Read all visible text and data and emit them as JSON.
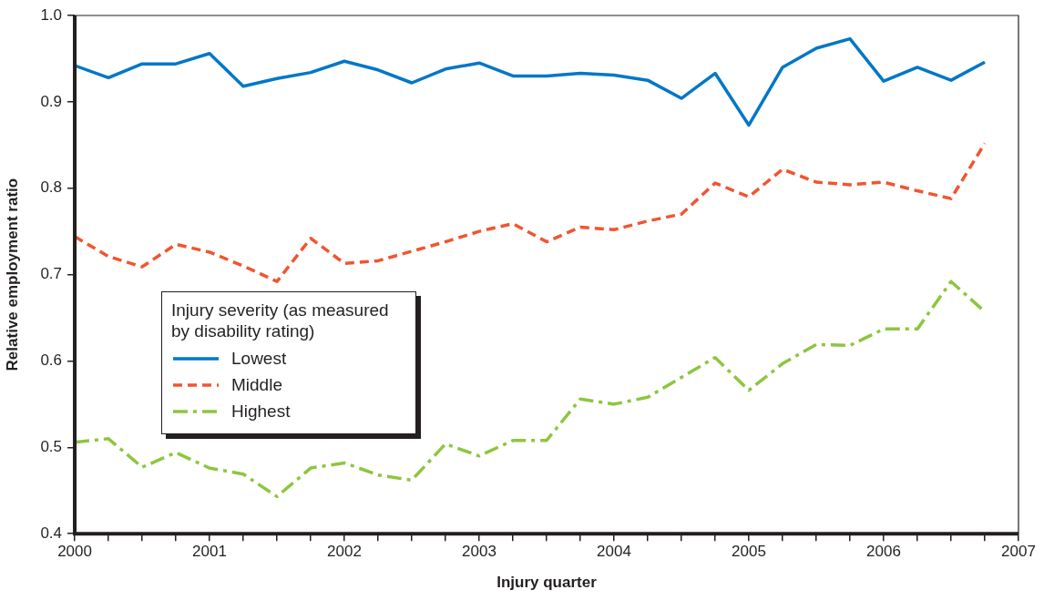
{
  "chart_data": {
    "type": "line",
    "xlabel": "Injury quarter",
    "ylabel": "Relative employment ratio",
    "legend_title": "Injury severity (as measured by disability rating)",
    "legend": "left",
    "grid": false,
    "marker": "none",
    "x": [
      2000,
      2000.25,
      2000.5,
      2000.75,
      2001,
      2001.25,
      2001.5,
      2001.75,
      2002,
      2002.25,
      2002.5,
      2002.75,
      2003,
      2003.25,
      2003.5,
      2003.75,
      2004,
      2004.25,
      2004.5,
      2004.75,
      2005,
      2005.25,
      2005.5,
      2005.75,
      2006,
      2006.25,
      2006.5,
      2006.75
    ],
    "xlim": [
      2000,
      2007
    ],
    "xticks": [
      2000,
      {
        "value": 2000.25,
        "label": null
      },
      {
        "value": 2000.5,
        "label": null
      },
      {
        "value": 2000.75,
        "label": null
      },
      2001,
      {
        "value": 2001.25,
        "label": null
      },
      {
        "value": 2001.5,
        "label": null
      },
      {
        "value": 2001.75,
        "label": null
      },
      2002,
      {
        "value": 2002.25,
        "label": null
      },
      {
        "value": 2002.5,
        "label": null
      },
      {
        "value": 2002.75,
        "label": null
      },
      2003,
      {
        "value": 2003.25,
        "label": null
      },
      {
        "value": 2003.5,
        "label": null
      },
      {
        "value": 2003.75,
        "label": null
      },
      2004,
      {
        "value": 2004.25,
        "label": null
      },
      {
        "value": 2004.5,
        "label": null
      },
      {
        "value": 2004.75,
        "label": null
      },
      2005,
      {
        "value": 2005.25,
        "label": null
      },
      {
        "value": 2005.5,
        "label": null
      },
      {
        "value": 2005.75,
        "label": null
      },
      2006,
      {
        "value": 2006.25,
        "label": null
      },
      {
        "value": 2006.5,
        "label": null
      },
      {
        "value": 2006.75,
        "label": null
      },
      2007
    ],
    "ylim": [
      0.4,
      1.0
    ],
    "yticks": [
      {
        "value": 0.4,
        "label": "0.4"
      },
      {
        "value": 0.5,
        "label": "0.5"
      },
      {
        "value": 0.6,
        "label": "0.6"
      },
      {
        "value": 0.7,
        "label": "0.7"
      },
      {
        "value": 0.8,
        "label": "0.8"
      },
      {
        "value": 0.9,
        "label": "0.9"
      },
      {
        "value": 1.0,
        "label": "1.0"
      }
    ],
    "series": [
      {
        "name": "Lowest",
        "color": "#0077c8",
        "line_style": "solid",
        "values": [
          0.942,
          0.928,
          0.944,
          0.944,
          0.956,
          0.918,
          0.927,
          0.934,
          0.947,
          0.937,
          0.922,
          0.938,
          0.945,
          0.93,
          0.93,
          0.933,
          0.931,
          0.925,
          0.904,
          0.933,
          0.873,
          0.94,
          0.962,
          0.973,
          0.924,
          0.94,
          0.925,
          0.946
        ]
      },
      {
        "name": "Middle",
        "color": "#f05530",
        "line_style": "dashed",
        "values": [
          0.744,
          0.721,
          0.709,
          0.735,
          0.726,
          0.71,
          0.692,
          0.742,
          0.713,
          0.716,
          0.727,
          0.738,
          0.75,
          0.759,
          0.738,
          0.755,
          0.752,
          0.762,
          0.77,
          0.806,
          0.79,
          0.822,
          0.807,
          0.804,
          0.807,
          0.797,
          0.788,
          0.852
        ]
      },
      {
        "name": "Highest",
        "color": "#8dc63f",
        "line_style": "dashdot",
        "values": [
          0.506,
          0.51,
          0.477,
          0.494,
          0.476,
          0.469,
          0.443,
          0.476,
          0.482,
          0.468,
          0.462,
          0.504,
          0.49,
          0.508,
          0.508,
          0.556,
          0.55,
          0.558,
          0.581,
          0.604,
          0.566,
          0.597,
          0.619,
          0.618,
          0.637,
          0.637,
          0.692,
          0.657
        ]
      }
    ]
  }
}
